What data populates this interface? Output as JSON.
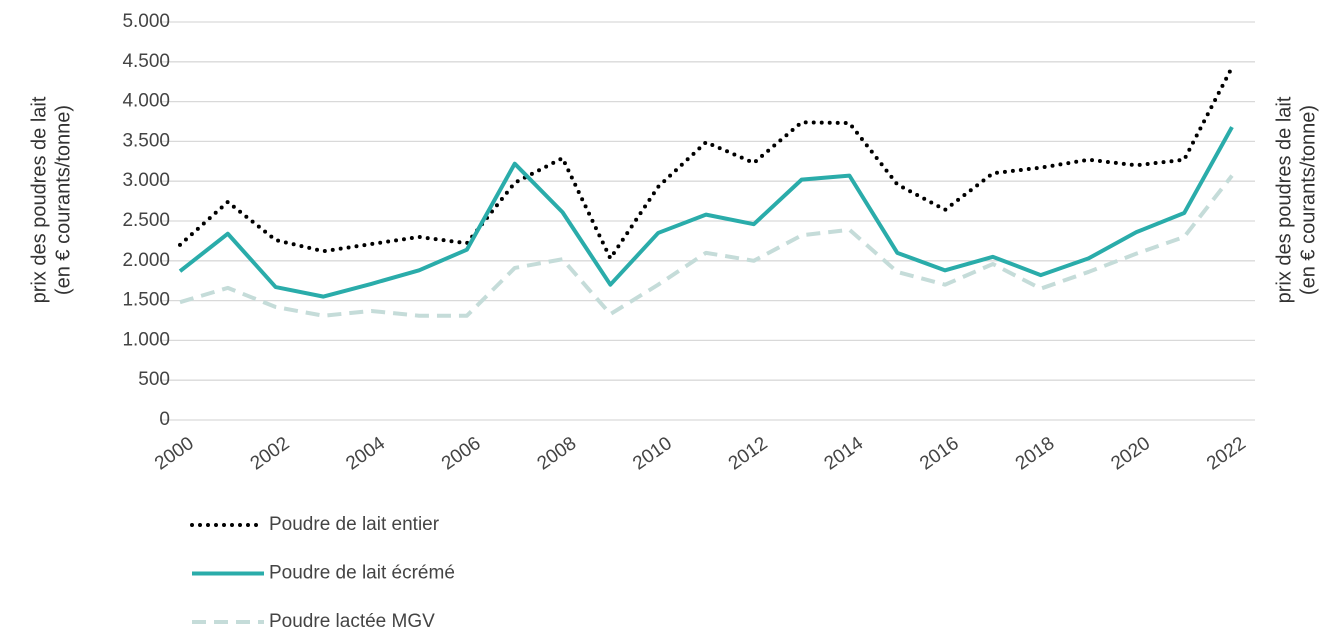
{
  "chart_data": {
    "type": "line",
    "y_label": [
      "prix des poudres de lait",
      "(en € courants/tonne)"
    ],
    "y2_label": [
      "prix des poudres de lait",
      "(en € courants/tonne)"
    ],
    "x": [
      2000,
      2001,
      2002,
      2003,
      2004,
      2005,
      2006,
      2007,
      2008,
      2009,
      2010,
      2011,
      2012,
      2013,
      2014,
      2015,
      2016,
      2017,
      2018,
      2019,
      2020,
      2021,
      2022
    ],
    "xlim": [
      2000,
      2022
    ],
    "xticks": [
      2000,
      2002,
      2004,
      2006,
      2008,
      2010,
      2012,
      2014,
      2016,
      2018,
      2020,
      2022
    ],
    "ylim": [
      0,
      5000
    ],
    "yticks": [
      0,
      500,
      {
        "value": 1000,
        "label": "1.000"
      },
      {
        "value": 1500,
        "label": "1.500"
      },
      {
        "value": 2000,
        "label": "2.000"
      },
      {
        "value": 2500,
        "label": "2.500"
      },
      {
        "value": 3000,
        "label": "3.000"
      },
      {
        "value": 3500,
        "label": "3.500"
      },
      {
        "value": 4000,
        "label": "4.000"
      },
      {
        "value": 4500,
        "label": "4.500"
      },
      {
        "value": 5000,
        "label": "5.000"
      }
    ],
    "grid": true,
    "legend": "bottom-left",
    "series": [
      {
        "name": "Poudre de lait entier",
        "color": "#000000",
        "style": "dotted",
        "values": [
          2200,
          2740,
          2260,
          2120,
          2210,
          2300,
          2220,
          2980,
          3290,
          2030,
          2930,
          3490,
          3230,
          3740,
          3730,
          2960,
          2640,
          3100,
          3170,
          3270,
          3200,
          3270,
          4430
        ]
      },
      {
        "name": "Poudre de lait écrémé",
        "color": "#2aacaa",
        "style": "solid",
        "values": [
          1870,
          2340,
          1670,
          1550,
          1710,
          1880,
          2140,
          3220,
          2610,
          1700,
          2350,
          2580,
          2460,
          3020,
          3070,
          2100,
          1880,
          2050,
          1820,
          2030,
          2360,
          2600,
          3680
        ]
      },
      {
        "name": "Poudre lactée MGV",
        "color": "#c5dcd9",
        "style": "dashed",
        "values": [
          1480,
          1660,
          1420,
          1310,
          1370,
          1310,
          1310,
          1910,
          2020,
          1330,
          1700,
          2100,
          2000,
          2320,
          2390,
          1860,
          1700,
          1960,
          1650,
          1860,
          2090,
          2300,
          3070
        ]
      }
    ]
  }
}
